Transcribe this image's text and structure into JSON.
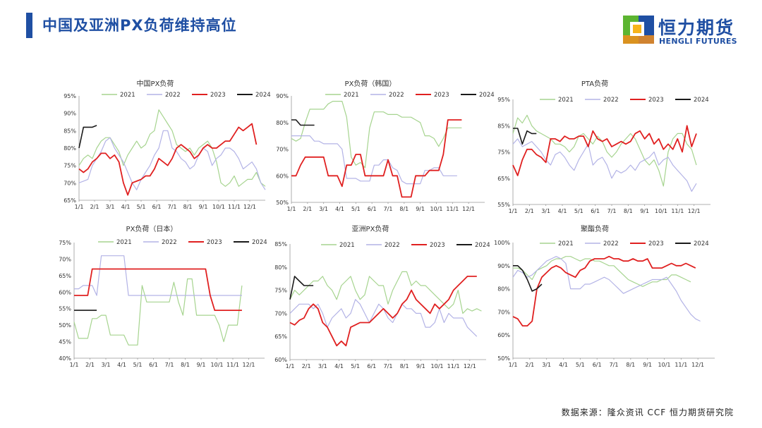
{
  "page": {
    "title": "中国及亚洲PX负荷维持高位",
    "source": "数据来源：隆众资讯 CCF 恒力期货研究院",
    "logo": {
      "cn": "恒力期货",
      "en": "HENGLI FUTURES",
      "colors": {
        "blue": "#1f4fa3",
        "green": "#5cb531",
        "yellow": "#f6b41b",
        "orange": "#f08c1c"
      }
    }
  },
  "colors": {
    "2021": "#a6d48f",
    "2022": "#b3b3e6",
    "2023": "#e02020",
    "2024": "#1a1a1a"
  },
  "chart_data": [
    {
      "type": "line",
      "title": "中国PX负荷",
      "legend": "top",
      "grid": false,
      "xticks": [
        "1/1",
        "2/1",
        "3/1",
        "4/1",
        "5/1",
        "6/1",
        "7/1",
        "8/1",
        "9/1",
        "10/1",
        "11/1",
        "12/1"
      ],
      "yticks": [
        "65%",
        "70%",
        "75%",
        "80%",
        "85%",
        "90%",
        "95%"
      ],
      "ylim": [
        65,
        95
      ],
      "series": [
        {
          "name": "2021",
          "values": [
            75,
            77,
            78,
            77,
            80,
            82,
            83,
            83,
            81,
            79,
            75,
            78,
            80,
            82,
            80,
            81,
            84,
            85,
            91,
            89,
            87,
            85,
            81,
            80,
            79,
            80,
            78,
            80,
            81,
            82,
            80,
            76,
            70,
            69,
            70,
            72,
            69,
            70,
            71,
            71,
            73,
            70,
            69
          ]
        },
        {
          "name": "2022",
          "values": [
            70,
            70.5,
            71,
            75,
            77,
            79,
            82,
            83,
            80,
            78,
            76,
            73,
            70,
            68,
            71,
            73,
            75,
            78,
            80,
            85,
            85,
            80,
            79,
            77,
            76,
            74,
            75,
            78,
            80,
            79,
            75,
            77,
            78,
            80,
            80,
            79,
            77,
            74,
            75,
            76,
            74,
            70,
            68
          ]
        },
        {
          "name": "2023",
          "values": [
            74,
            73,
            74,
            76,
            77,
            78.5,
            78.5,
            77,
            78,
            76,
            70,
            66.5,
            70,
            70.5,
            71,
            72,
            72,
            74,
            77,
            76,
            75,
            77,
            80,
            81,
            80,
            79,
            77,
            78,
            80,
            81,
            80,
            80,
            81,
            82,
            82,
            84,
            86,
            85,
            86,
            87,
            81
          ]
        },
        {
          "name": "2024",
          "values": [
            80,
            86,
            86,
            86,
            86.5
          ]
        }
      ]
    },
    {
      "type": "line",
      "title": "PX负荷（韩国）",
      "legend": "top",
      "grid": false,
      "xticks": [
        "1/1",
        "2/1",
        "3/1",
        "4/1",
        "5/1",
        "6/1",
        "7/1",
        "8/1",
        "9/1",
        "10/1",
        "11/1",
        "12/1"
      ],
      "yticks": [
        "50%",
        "60%",
        "70%",
        "80%",
        "90%"
      ],
      "ylim": [
        50,
        90
      ],
      "series": [
        {
          "name": "2021",
          "values": [
            74,
            73,
            74,
            80,
            85,
            85,
            85,
            85,
            87,
            88,
            88,
            88,
            82,
            67,
            64,
            65,
            63,
            78,
            84,
            84,
            84,
            83,
            83,
            83,
            82,
            82,
            82,
            81,
            80,
            75,
            75,
            74,
            71,
            74,
            78,
            78,
            78,
            78
          ]
        },
        {
          "name": "2022",
          "values": [
            75,
            75,
            75,
            75,
            75,
            73,
            73,
            72,
            72,
            72,
            72,
            70,
            59,
            59,
            59,
            58,
            58,
            58,
            64,
            64,
            66,
            66,
            63,
            62,
            58,
            57,
            57,
            57,
            57,
            62,
            62,
            63,
            63,
            60,
            60,
            60,
            60
          ]
        },
        {
          "name": "2023",
          "values": [
            60,
            60,
            64,
            67,
            67,
            67,
            67,
            67,
            60,
            60,
            60,
            56,
            64,
            64,
            68,
            68,
            60,
            60,
            60,
            60,
            60,
            66,
            60,
            60,
            52,
            52,
            52,
            60,
            60,
            60,
            62,
            62,
            62,
            68,
            81,
            81,
            81,
            81
          ]
        },
        {
          "name": "2024",
          "values": [
            81,
            81,
            79,
            79,
            79,
            79
          ]
        }
      ]
    },
    {
      "type": "line",
      "title": "PTA负荷",
      "legend": "top",
      "grid": false,
      "xticks": [
        "1/1",
        "2/1",
        "3/1",
        "4/1",
        "5/1",
        "6/1",
        "7/1",
        "8/1",
        "9/1",
        "10/1",
        "11/1",
        "12/1"
      ],
      "yticks": [
        "55%",
        "65%",
        "75%",
        "85%",
        "95%"
      ],
      "ylim": [
        55,
        95
      ],
      "series": [
        {
          "name": "2021",
          "values": [
            82,
            88,
            86,
            89,
            85,
            83,
            82,
            81,
            80,
            78,
            78,
            77,
            75,
            77,
            81,
            82,
            80,
            78,
            81,
            79,
            75,
            73,
            75,
            78,
            80,
            82,
            80,
            76,
            72,
            70,
            72,
            68,
            62,
            75,
            80,
            82,
            82,
            78,
            76,
            70
          ]
        },
        {
          "name": "2022",
          "values": [
            78,
            80,
            77,
            78,
            79,
            77,
            75,
            72,
            70,
            74,
            75,
            73,
            70,
            68,
            72,
            75,
            78,
            70,
            72,
            73,
            70,
            65,
            68,
            67,
            68,
            70,
            68,
            71,
            72,
            73,
            75,
            70,
            72,
            73,
            70,
            68,
            66,
            64,
            60,
            63
          ]
        },
        {
          "name": "2023",
          "values": [
            70,
            66,
            72,
            76,
            76,
            74,
            73,
            71,
            80,
            80,
            79,
            81,
            80,
            80,
            81,
            81,
            77,
            83,
            80,
            79,
            80,
            77,
            78,
            79,
            78,
            79,
            82,
            83,
            80,
            82,
            78,
            80,
            76,
            78,
            76,
            80,
            75,
            85,
            77,
            82
          ]
        },
        {
          "name": "2024",
          "values": [
            84,
            84,
            78,
            83,
            82,
            82
          ]
        }
      ]
    },
    {
      "type": "line",
      "title": "PX负荷（日本）",
      "legend": "top",
      "grid": false,
      "xticks": [
        "1/1",
        "2/1",
        "3/1",
        "4/1",
        "5/1",
        "6/1",
        "7/1",
        "8/1",
        "9/1",
        "10/1",
        "11/1",
        "12/1"
      ],
      "yticks": [
        "40%",
        "45%",
        "50%",
        "55%",
        "60%",
        "65%",
        "70%",
        "75%"
      ],
      "ylim": [
        40,
        75
      ],
      "series": [
        {
          "name": "2021",
          "values": [
            51,
            46,
            46,
            46,
            52,
            52,
            53,
            53,
            47,
            47,
            47,
            47,
            44,
            44,
            44,
            62,
            57,
            57,
            57,
            57,
            57,
            57,
            63,
            57,
            53,
            64,
            64,
            53,
            53,
            53,
            53,
            53,
            50,
            45,
            50,
            50,
            50,
            62
          ]
        },
        {
          "name": "2022",
          "values": [
            61,
            61,
            62,
            62,
            62,
            59,
            71,
            71,
            71,
            71,
            71,
            71,
            59,
            59,
            59,
            59,
            59,
            59,
            59,
            59,
            59,
            59,
            59,
            59,
            59,
            59,
            59,
            59,
            59,
            59,
            59,
            59,
            59,
            59,
            59,
            59,
            59,
            59
          ]
        },
        {
          "name": "2023",
          "values": [
            59,
            59,
            59,
            59,
            67,
            67,
            67,
            67,
            67,
            67,
            67,
            67,
            67,
            67,
            67,
            67,
            67,
            67,
            67,
            67,
            67,
            67,
            67,
            67,
            67,
            67,
            67,
            67,
            67,
            67,
            59,
            54.5,
            54.5,
            54.5,
            54.5,
            54.5,
            54.5,
            54.5
          ]
        },
        {
          "name": "2024",
          "values": [
            54.5,
            54.5,
            54.5,
            54.5,
            54.5,
            54.5
          ]
        }
      ]
    },
    {
      "type": "line",
      "title": "亚洲PX负荷",
      "legend": "top",
      "grid": false,
      "xticks": [
        "1/1",
        "2/1",
        "3/1",
        "4/1",
        "5/1",
        "6/1",
        "7/1",
        "8/1",
        "9/1",
        "10/1",
        "11/1",
        "12/1"
      ],
      "yticks": [
        "60%",
        "65%",
        "70%",
        "75%",
        "80%",
        "85%"
      ],
      "ylim": [
        60,
        85
      ],
      "series": [
        {
          "name": "2021",
          "values": [
            73,
            75,
            74,
            75,
            76,
            77,
            77,
            78,
            76,
            75,
            73,
            76,
            77,
            78,
            75,
            73,
            74,
            78,
            77,
            76,
            76,
            72,
            75,
            77,
            79,
            79,
            76,
            77,
            76,
            76,
            75,
            74,
            73,
            72,
            71,
            72,
            75,
            70,
            71,
            70.5,
            71,
            70.5
          ]
        },
        {
          "name": "2022",
          "values": [
            70,
            71,
            72,
            72,
            72,
            71,
            72,
            70,
            67,
            69,
            70,
            71,
            69,
            70,
            73,
            72,
            70,
            68,
            70,
            72,
            71,
            69,
            68,
            70,
            72,
            71,
            71,
            70,
            70,
            67,
            67,
            68,
            71,
            68,
            70,
            69,
            69,
            69,
            67,
            66,
            65
          ]
        },
        {
          "name": "2023",
          "values": [
            68,
            67.5,
            68.5,
            69,
            71,
            72,
            71,
            68,
            67,
            65,
            63,
            64,
            63,
            67,
            67.5,
            68,
            68,
            68,
            69,
            70,
            71,
            70,
            69,
            70,
            72,
            73,
            75,
            73,
            72,
            71,
            70,
            72,
            71,
            72,
            73,
            75,
            76,
            77,
            78,
            78,
            78
          ]
        },
        {
          "name": "2024",
          "values": [
            73,
            78,
            77,
            76,
            76,
            76
          ]
        }
      ]
    },
    {
      "type": "line",
      "title": "聚酯负荷",
      "legend": "top",
      "grid": false,
      "xticks": [
        "1/1",
        "2/1",
        "3/1",
        "4/1",
        "5/1",
        "6/1",
        "7/1",
        "8/1",
        "9/1",
        "10/1",
        "11/1",
        "12/1"
      ],
      "yticks": [
        "50%",
        "60%",
        "70%",
        "80%",
        "90%",
        "100%"
      ],
      "ylim": [
        50,
        100
      ],
      "series": [
        {
          "name": "2021",
          "values": [
            89,
            89,
            88,
            86,
            84,
            88,
            89,
            90,
            92,
            93,
            93,
            94,
            94,
            93,
            92,
            93,
            93,
            92,
            92,
            91,
            90,
            90,
            88,
            86,
            84,
            83,
            82,
            81,
            82,
            83,
            83,
            84,
            84,
            86,
            86,
            85,
            84,
            83
          ]
        },
        {
          "name": "2022",
          "values": [
            85,
            88,
            87,
            85,
            86,
            88,
            90,
            92,
            93,
            94,
            93,
            91,
            80,
            80,
            80,
            82,
            82,
            83,
            84,
            85,
            84,
            82,
            80,
            78,
            79,
            80,
            81,
            82,
            83,
            84,
            84,
            84,
            85,
            82,
            79,
            75,
            72,
            69,
            67,
            66
          ]
        },
        {
          "name": "2023",
          "values": [
            68,
            67,
            64,
            64,
            66,
            80,
            85,
            87,
            89,
            90,
            89,
            87,
            86,
            85,
            88,
            89,
            92,
            93,
            93,
            93,
            94,
            93,
            93,
            92,
            92,
            93,
            92,
            92,
            93,
            89,
            89,
            89,
            90,
            91,
            90,
            90,
            91,
            90,
            89
          ]
        },
        {
          "name": "2024",
          "values": [
            90,
            90,
            88,
            84,
            79,
            80,
            82
          ]
        }
      ]
    }
  ]
}
